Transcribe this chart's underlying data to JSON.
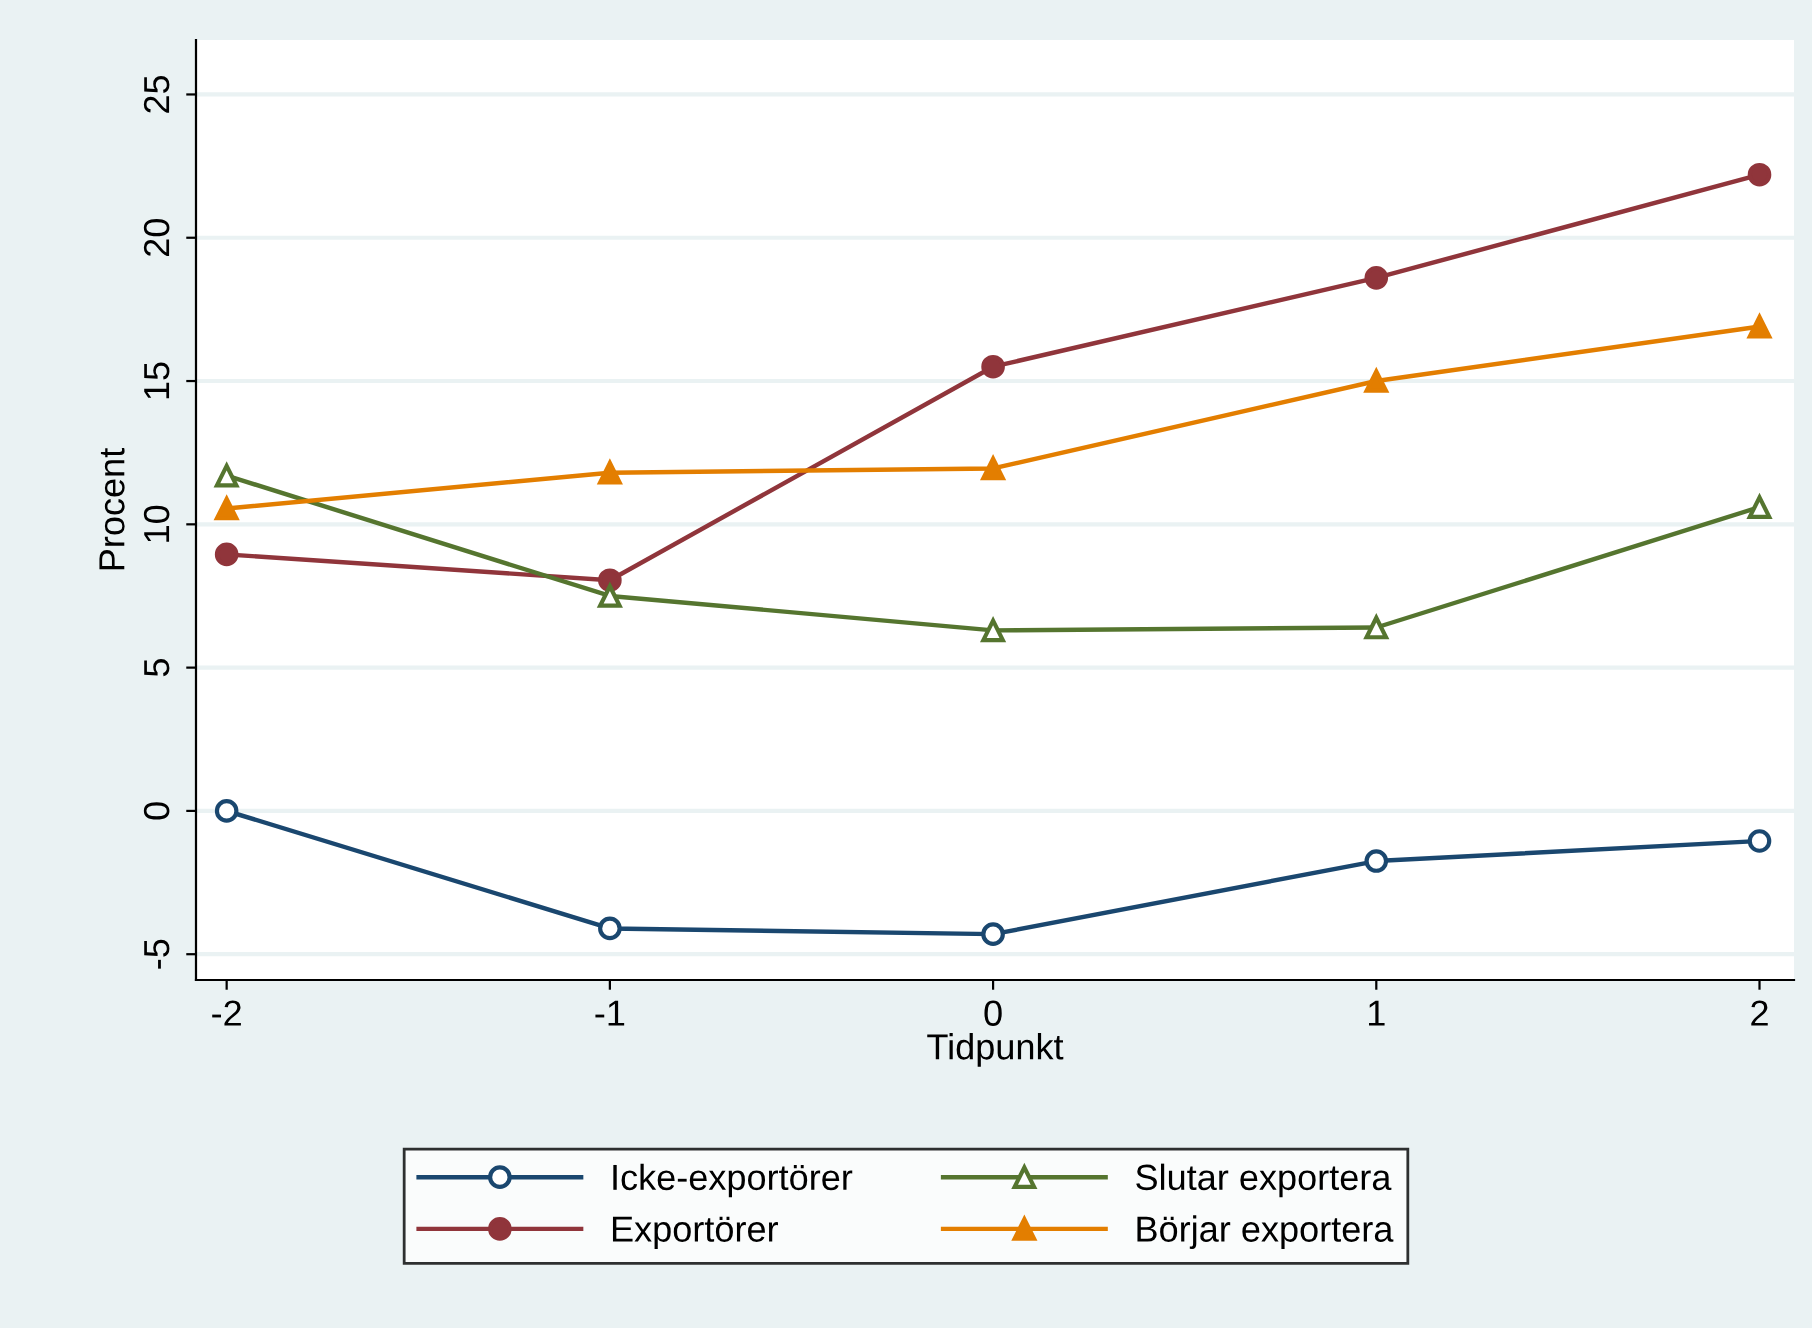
{
  "chart_data": {
    "type": "line",
    "xlabel": "Tidpunkt",
    "ylabel": "Procent",
    "x": [
      -2,
      -1,
      0,
      1,
      2
    ],
    "series": [
      {
        "name": "Icke-exportörer",
        "color": "#1a476f",
        "marker": "circle",
        "values": [
          0.0,
          -4.1,
          -4.3,
          -1.75,
          -1.05
        ]
      },
      {
        "name": "Exportörer",
        "color": "#90353b",
        "marker": "circle",
        "values": [
          8.95,
          8.05,
          15.5,
          18.6,
          22.2
        ]
      },
      {
        "name": "Slutar exportera",
        "color": "#55752f",
        "marker": "triangle",
        "values": [
          11.7,
          7.5,
          6.3,
          6.4,
          10.6
        ]
      },
      {
        "name": "Börjar exportera",
        "color": "#e37e00",
        "marker": "triangle",
        "values": [
          10.55,
          11.8,
          11.95,
          15.0,
          16.9
        ]
      }
    ],
    "xlim": [
      -2.08,
      2.09
    ],
    "ylim": [
      -5.9,
      26.9
    ],
    "xticks": [
      -2,
      -1,
      0,
      1,
      2
    ],
    "yticks": [
      -5,
      0,
      5,
      10,
      15,
      20,
      25
    ],
    "grid": "y",
    "legend": "bottom",
    "line_style": "solid"
  }
}
